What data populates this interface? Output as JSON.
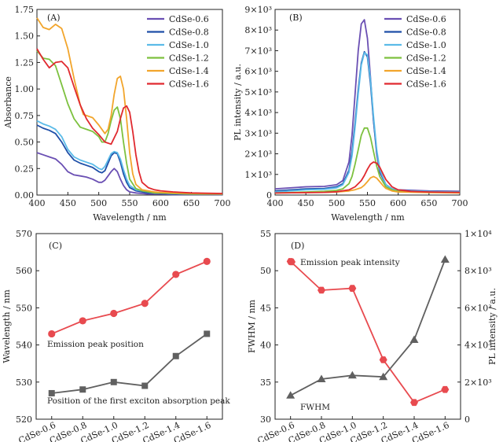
{
  "colors": {
    "CdSe-0.6": "#6a4fb3",
    "CdSe-0.8": "#1f4fa8",
    "CdSe-1.0": "#5bbbe8",
    "CdSe-1.2": "#7dc13f",
    "CdSe-1.4": "#f2a52c",
    "CdSe-1.6": "#e0292f",
    "emission": "#e84a4f",
    "fwhm_abs": "#606060"
  },
  "chart_data": [
    {
      "type": "line",
      "panel_label": "(A)",
      "xlabel": "Wavelength / nm",
      "ylabel": "Absorbance",
      "xlim": [
        400,
        700
      ],
      "ylim": [
        0,
        1.75
      ],
      "xticks": [
        "400",
        "450",
        "500",
        "550",
        "600",
        "650",
        "700"
      ],
      "yticks": [
        "0.00",
        "0.25",
        "0.50",
        "0.75",
        "1.00",
        "1.25",
        "1.50",
        "1.75"
      ],
      "legend": "top-right",
      "series": [
        {
          "name": "CdSe-0.6",
          "x": [
            400,
            410,
            420,
            430,
            440,
            450,
            460,
            470,
            480,
            490,
            500,
            505,
            510,
            515,
            520,
            525,
            530,
            535,
            540,
            545,
            550,
            560,
            570,
            580,
            590,
            600,
            620,
            650,
            700
          ],
          "y": [
            0.4,
            0.38,
            0.36,
            0.34,
            0.29,
            0.22,
            0.19,
            0.18,
            0.17,
            0.15,
            0.12,
            0.12,
            0.14,
            0.18,
            0.22,
            0.25,
            0.22,
            0.15,
            0.09,
            0.05,
            0.03,
            0.02,
            0.015,
            0.01,
            0.01,
            0.01,
            0.005,
            0.005,
            0.005
          ]
        },
        {
          "name": "CdSe-0.8",
          "x": [
            400,
            410,
            420,
            430,
            440,
            450,
            460,
            470,
            480,
            490,
            500,
            505,
            510,
            515,
            520,
            525,
            530,
            535,
            540,
            545,
            550,
            560,
            570,
            580,
            590,
            600,
            620,
            650,
            700
          ],
          "y": [
            0.66,
            0.63,
            0.61,
            0.58,
            0.5,
            0.4,
            0.33,
            0.3,
            0.28,
            0.26,
            0.22,
            0.21,
            0.23,
            0.3,
            0.37,
            0.4,
            0.39,
            0.31,
            0.2,
            0.12,
            0.07,
            0.04,
            0.03,
            0.02,
            0.02,
            0.015,
            0.01,
            0.01,
            0.005
          ]
        },
        {
          "name": "CdSe-1.0",
          "x": [
            400,
            410,
            420,
            430,
            440,
            450,
            460,
            470,
            480,
            490,
            500,
            505,
            510,
            515,
            520,
            525,
            530,
            535,
            540,
            545,
            550,
            560,
            570,
            580,
            590,
            600,
            620,
            650,
            700
          ],
          "y": [
            0.7,
            0.67,
            0.65,
            0.62,
            0.55,
            0.43,
            0.36,
            0.33,
            0.31,
            0.29,
            0.25,
            0.24,
            0.27,
            0.33,
            0.39,
            0.41,
            0.4,
            0.34,
            0.24,
            0.15,
            0.09,
            0.05,
            0.04,
            0.03,
            0.02,
            0.02,
            0.015,
            0.01,
            0.01
          ]
        },
        {
          "name": "CdSe-1.2",
          "x": [
            400,
            410,
            420,
            430,
            440,
            450,
            460,
            470,
            480,
            490,
            500,
            505,
            510,
            515,
            520,
            525,
            530,
            535,
            540,
            545,
            550,
            560,
            570,
            580,
            590,
            600,
            620,
            650,
            700
          ],
          "y": [
            1.36,
            1.29,
            1.28,
            1.22,
            1.04,
            0.86,
            0.72,
            0.64,
            0.62,
            0.6,
            0.55,
            0.5,
            0.5,
            0.58,
            0.7,
            0.8,
            0.83,
            0.72,
            0.5,
            0.3,
            0.15,
            0.06,
            0.04,
            0.03,
            0.02,
            0.02,
            0.015,
            0.01,
            0.01
          ]
        },
        {
          "name": "CdSe-1.4",
          "x": [
            400,
            410,
            420,
            430,
            440,
            450,
            460,
            470,
            475,
            480,
            490,
            500,
            510,
            515,
            520,
            525,
            530,
            535,
            540,
            545,
            550,
            555,
            560,
            570,
            580,
            590,
            600,
            620,
            650,
            700
          ],
          "y": [
            1.67,
            1.58,
            1.56,
            1.61,
            1.57,
            1.38,
            1.1,
            0.85,
            0.76,
            0.75,
            0.73,
            0.66,
            0.58,
            0.62,
            0.75,
            0.95,
            1.1,
            1.12,
            1.0,
            0.72,
            0.4,
            0.2,
            0.1,
            0.05,
            0.04,
            0.03,
            0.025,
            0.02,
            0.015,
            0.01
          ]
        },
        {
          "name": "CdSe-1.6",
          "x": [
            400,
            410,
            420,
            430,
            440,
            450,
            460,
            470,
            480,
            490,
            500,
            510,
            520,
            530,
            535,
            540,
            545,
            550,
            555,
            560,
            565,
            570,
            580,
            590,
            600,
            620,
            650,
            700
          ],
          "y": [
            1.38,
            1.28,
            1.2,
            1.25,
            1.26,
            1.2,
            1.02,
            0.85,
            0.72,
            0.63,
            0.57,
            0.5,
            0.48,
            0.6,
            0.72,
            0.82,
            0.84,
            0.78,
            0.6,
            0.38,
            0.22,
            0.12,
            0.07,
            0.05,
            0.04,
            0.03,
            0.02,
            0.015
          ]
        }
      ]
    },
    {
      "type": "line",
      "panel_label": "(B)",
      "xlabel": "Wavelength / nm",
      "ylabel": "PL intensity / a.u.",
      "xlim": [
        400,
        700
      ],
      "ylim": [
        0,
        9000
      ],
      "xticks": [
        "400",
        "450",
        "500",
        "550",
        "600",
        "650",
        "700"
      ],
      "yticks": [
        "0",
        "1×10³",
        "2×10³",
        "3×10³",
        "4×10³",
        "5×10³",
        "6×10³",
        "7×10³",
        "8×10³",
        "9×10³"
      ],
      "legend": "top-right",
      "series": [
        {
          "name": "CdSe-0.6",
          "x": [
            400,
            450,
            480,
            500,
            510,
            520,
            525,
            530,
            535,
            540,
            545,
            550,
            555,
            560,
            565,
            570,
            580,
            590,
            600,
            650,
            700
          ],
          "y": [
            300,
            400,
            420,
            500,
            700,
            1600,
            2900,
            4900,
            7000,
            8300,
            8500,
            7600,
            5700,
            3600,
            2000,
            1100,
            500,
            300,
            250,
            200,
            180
          ]
        },
        {
          "name": "CdSe-0.8",
          "x": [
            400,
            450,
            480,
            500,
            510,
            520,
            525,
            530,
            535,
            540,
            545,
            550,
            555,
            560,
            565,
            570,
            580,
            590,
            600,
            650,
            700
          ],
          "y": [
            200,
            300,
            320,
            400,
            550,
            1200,
            2100,
            3500,
            5100,
            6400,
            6950,
            6700,
            5400,
            3600,
            2100,
            1200,
            500,
            300,
            220,
            180,
            160
          ]
        },
        {
          "name": "CdSe-1.0",
          "x": [
            400,
            450,
            480,
            500,
            510,
            520,
            525,
            530,
            535,
            540,
            545,
            550,
            555,
            560,
            565,
            570,
            580,
            590,
            600,
            650,
            700
          ],
          "y": [
            150,
            250,
            280,
            350,
            500,
            1100,
            1900,
            3300,
            4900,
            6300,
            6900,
            6800,
            5600,
            3800,
            2200,
            1250,
            500,
            300,
            220,
            170,
            150
          ]
        },
        {
          "name": "CdSe-1.2",
          "x": [
            400,
            450,
            480,
            500,
            510,
            520,
            525,
            530,
            535,
            540,
            545,
            550,
            555,
            560,
            565,
            570,
            580,
            590,
            600,
            650,
            700
          ],
          "y": [
            100,
            150,
            180,
            230,
            300,
            550,
            900,
            1500,
            2200,
            2900,
            3250,
            3250,
            2800,
            2100,
            1400,
            900,
            400,
            250,
            180,
            140,
            120
          ]
        },
        {
          "name": "CdSe-1.4",
          "x": [
            400,
            450,
            480,
            500,
            520,
            530,
            540,
            545,
            550,
            555,
            560,
            565,
            570,
            575,
            580,
            590,
            600,
            650,
            700
          ],
          "y": [
            100,
            120,
            130,
            150,
            200,
            260,
            360,
            480,
            650,
            830,
            900,
            820,
            650,
            470,
            320,
            200,
            150,
            120,
            100
          ]
        },
        {
          "name": "CdSe-1.6",
          "x": [
            400,
            450,
            480,
            500,
            520,
            530,
            540,
            545,
            550,
            555,
            560,
            565,
            570,
            575,
            580,
            590,
            600,
            620,
            650,
            700
          ],
          "y": [
            100,
            120,
            130,
            160,
            250,
            400,
            700,
            950,
            1250,
            1500,
            1600,
            1550,
            1350,
            1050,
            750,
            400,
            250,
            180,
            150,
            130
          ]
        }
      ]
    },
    {
      "type": "line",
      "panel_label": "(C)",
      "ylabel": "Wavelength / nm",
      "categories": [
        "CdSe-0.6",
        "CdSe-0.8",
        "CdSe-1.0",
        "CdSe-1.2",
        "CdSe-1.4",
        "CdSe-1.6"
      ],
      "ylim": [
        520,
        570
      ],
      "yticks": [
        "520",
        "530",
        "540",
        "550",
        "560",
        "570"
      ],
      "series": [
        {
          "name": "Emission peak position",
          "marker": "circle",
          "values": [
            543,
            546.5,
            548.5,
            551.2,
            559,
            562.5
          ]
        },
        {
          "name": "Position of the first exciton absorption peak",
          "marker": "square",
          "values": [
            527,
            528,
            530,
            529,
            537,
            543
          ]
        }
      ]
    },
    {
      "type": "line",
      "panel_label": "(D)",
      "ylabel": "FWHM / nm",
      "y2label": "PL intensity / a.u.",
      "categories": [
        "CdSe-0.6",
        "CdSe-0.8",
        "CdSe-1.0",
        "CdSe-1.2",
        "CdSe-1.4",
        "CdSe-1.6"
      ],
      "ylim": [
        30,
        55
      ],
      "yticks": [
        "30",
        "35",
        "40",
        "45",
        "50",
        "55"
      ],
      "y2lim": [
        0,
        10000
      ],
      "y2ticks": [
        "0",
        "2×10³",
        "4×10³",
        "6×10³",
        "8×10³",
        "1×10⁴"
      ],
      "series": [
        {
          "name": "Emission peak intensity",
          "marker": "hexagon",
          "axis": "right",
          "values": [
            8500,
            6950,
            7050,
            3200,
            900,
            1600
          ]
        },
        {
          "name": "FWHM",
          "marker": "triangle",
          "axis": "left",
          "values": [
            33.2,
            35.4,
            35.9,
            35.7,
            40.7,
            51.5
          ]
        }
      ]
    }
  ]
}
